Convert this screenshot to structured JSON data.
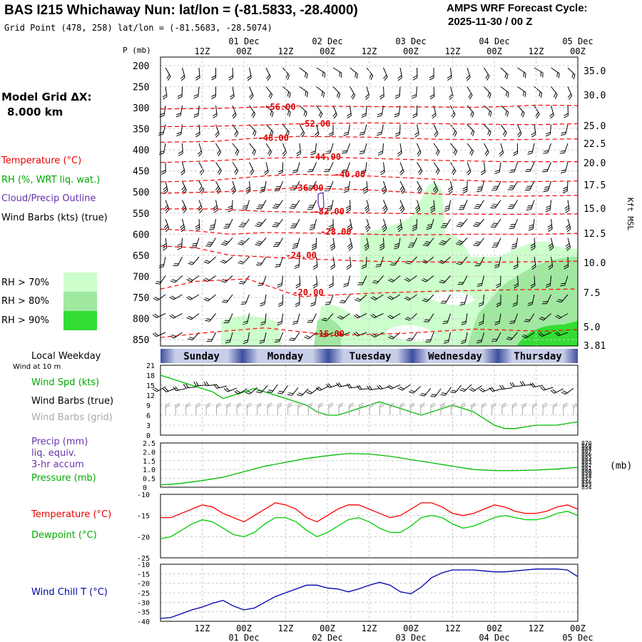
{
  "header": {
    "title": "BAS I215 Whichaway Nun:  lat/lon = (-81.5833, -28.4000)",
    "grid_point": "Grid Point (478, 258) lat/lon = (-81.5683, -28.5074)",
    "cycle_line1": "AMPS WRF Forecast Cycle:",
    "cycle_line2": "2025-11-30 / 00  Z"
  },
  "sidebar": {
    "model_grid_label": "Model Grid ΔX:",
    "model_grid_value": "8.000 km",
    "temperature_label": "Temperature (°C)",
    "rh_label": "RH (%, WRT liq. wat.)",
    "cloud_label": "Cloud/Precip Outline",
    "wind_label": "Wind Barbs (kts) (true)",
    "rh70": "RH > 70%",
    "rh80": "RH > 80%",
    "rh90": "RH > 90%",
    "local_weekday": "Local Weekday",
    "wind_10m": "Wind at 10 m",
    "wind_spd": "Wind Spd (kts)",
    "wind_barbs_true": "Wind Barbs (true)",
    "wind_barbs_grid": "Wind Barbs (grid)",
    "precip": "Precip (mm)",
    "liq_equiv": "liq. equiv.",
    "accum": "3-hr accum",
    "pressure": "Pressure (mb)",
    "temp2": "Temperature (°C)",
    "dewpoint": "Dewpoint (°C)",
    "windchill": "Wind Chill T (°C)"
  },
  "colors": {
    "temperature": "#ff0000",
    "rh70": "#ccffcc",
    "rh80": "#a0e8a0",
    "rh90": "#33dd33",
    "cloud": "#6633aa",
    "wind_spd": "#00bb00",
    "wind_barbs_grid": "#aaaaaa",
    "dewpoint": "#00cc00",
    "windchill": "#0000aa",
    "pressure": "#00bb00"
  },
  "time_axis": {
    "tick_labels": [
      "12Z",
      "00Z",
      "12Z",
      "00Z",
      "12Z",
      "00Z",
      "12Z",
      "00Z",
      "12Z",
      "00Z"
    ],
    "date_labels": [
      "01 Dec",
      "02 Dec",
      "03 Dec",
      "04 Dec",
      "05 Dec"
    ],
    "weekdays": [
      "Sunday",
      "Monday",
      "Tuesday",
      "Wednesday",
      "Thursday"
    ]
  },
  "chart_data": [
    {
      "type": "heatmap",
      "name": "profile",
      "ylabel": "P (mb)",
      "yticks": [
        200,
        250,
        300,
        350,
        400,
        450,
        500,
        550,
        600,
        650,
        700,
        750,
        800,
        850
      ],
      "right_axis_label": "Kft MSL",
      "right_ticks": [
        "35.0",
        "30.0",
        "25.0",
        "22.5",
        "20.0",
        "17.5",
        "15.0",
        "12.5",
        "10.0",
        "7.5",
        "5.0",
        "3.81"
      ],
      "temperature_contours": [
        {
          "value": "-56.00",
          "points": [
            [
              0,
              303
            ],
            [
              15,
              302
            ],
            [
              30,
              298
            ],
            [
              40,
              296
            ],
            [
              55,
              297
            ],
            [
              72,
              298
            ],
            [
              90,
              299
            ],
            [
              100,
              297
            ],
            [
              108,
              294
            ],
            [
              120,
              295
            ]
          ]
        },
        {
          "value": "-52.00",
          "points": [
            [
              0,
              345
            ],
            [
              15,
              344
            ],
            [
              30,
              341
            ],
            [
              40,
              338
            ],
            [
              60,
              336
            ],
            [
              80,
              338
            ],
            [
              100,
              340
            ],
            [
              110,
              340
            ],
            [
              120,
              338
            ]
          ]
        },
        {
          "value": "-48.00",
          "points": [
            [
              0,
              382
            ],
            [
              15,
              380
            ],
            [
              28,
              372
            ],
            [
              40,
              368
            ],
            [
              60,
              370
            ],
            [
              80,
              375
            ],
            [
              100,
              376
            ],
            [
              120,
              374
            ]
          ]
        },
        {
          "value": "-44.00",
          "points": [
            [
              0,
              430
            ],
            [
              15,
              426
            ],
            [
              30,
              420
            ],
            [
              45,
              417
            ],
            [
              60,
              420
            ],
            [
              80,
              425
            ],
            [
              100,
              428
            ],
            [
              120,
              428
            ]
          ]
        },
        {
          "value": "-40.00",
          "points": [
            [
              0,
              476
            ],
            [
              15,
              472
            ],
            [
              30,
              462
            ],
            [
              40,
              458
            ],
            [
              60,
              462
            ],
            [
              80,
              470
            ],
            [
              100,
              476
            ],
            [
              120,
              474
            ]
          ]
        },
        {
          "value": "-36.00",
          "points": [
            [
              0,
              503
            ],
            [
              15,
              500
            ],
            [
              30,
              496
            ],
            [
              38,
              490
            ],
            [
              60,
              495
            ],
            [
              80,
              505
            ],
            [
              100,
              510
            ],
            [
              120,
              508
            ]
          ]
        },
        {
          "value": "-32.00",
          "points": [
            [
              0,
              540
            ],
            [
              15,
              540
            ],
            [
              30,
              546
            ],
            [
              45,
              548
            ],
            [
              60,
              550
            ],
            [
              80,
              552
            ],
            [
              100,
              553
            ],
            [
              120,
              552
            ]
          ]
        },
        {
          "value": "-28.00",
          "points": [
            [
              0,
              588
            ],
            [
              10,
              592
            ],
            [
              20,
              600
            ],
            [
              30,
              596
            ],
            [
              50,
              598
            ],
            [
              70,
              602
            ],
            [
              90,
              600
            ],
            [
              110,
              600
            ],
            [
              120,
              598
            ]
          ]
        },
        {
          "value": "-24.00",
          "points": [
            [
              0,
              628
            ],
            [
              10,
              632
            ],
            [
              20,
              650
            ],
            [
              40,
              658
            ],
            [
              60,
              664
            ],
            [
              80,
              666
            ],
            [
              100,
              666
            ],
            [
              120,
              664
            ]
          ]
        },
        {
          "value": "-20.00",
          "points": [
            [
              0,
              730
            ],
            [
              10,
              712
            ],
            [
              25,
              706
            ],
            [
              40,
              748
            ],
            [
              60,
              740
            ],
            [
              80,
              735
            ],
            [
              100,
              732
            ],
            [
              120,
              730
            ]
          ]
        },
        {
          "value": "-16.00",
          "points": [
            [
              0,
              845
            ],
            [
              15,
              832
            ],
            [
              30,
              822
            ],
            [
              50,
              840
            ],
            [
              70,
              835
            ],
            [
              90,
              825
            ],
            [
              110,
              830
            ],
            [
              120,
              826
            ]
          ]
        }
      ],
      "contour_label_positions": [
        [
          30,
          298
        ],
        [
          40,
          338
        ],
        [
          28,
          372
        ],
        [
          43,
          417
        ],
        [
          50,
          458
        ],
        [
          38,
          490
        ],
        [
          44,
          546
        ],
        [
          46,
          594
        ],
        [
          36,
          650
        ],
        [
          38,
          738
        ],
        [
          44,
          836
        ]
      ]
    },
    {
      "type": "line",
      "name": "wind_speed",
      "x_hours": [
        0,
        3,
        6,
        9,
        12,
        15,
        18,
        21,
        24,
        27,
        30,
        33,
        36,
        39,
        42,
        45,
        48,
        51,
        54,
        57,
        60,
        63,
        66,
        69,
        72,
        75,
        78,
        81,
        84,
        87,
        90,
        93,
        96,
        99,
        102,
        105,
        108,
        111,
        114,
        117,
        120
      ],
      "values": [
        18,
        17,
        16,
        15,
        14,
        13,
        11,
        12,
        13,
        14,
        13,
        12,
        11,
        10,
        9,
        7,
        6,
        6,
        7,
        8,
        9,
        10,
        9,
        8,
        7,
        6,
        7,
        8,
        9,
        8,
        7,
        5,
        3,
        2,
        2,
        2.5,
        3,
        3,
        3,
        3.5,
        4
      ],
      "ylim": [
        0,
        21
      ],
      "yticks": [
        0,
        3,
        6,
        9,
        12,
        15,
        18,
        21
      ]
    },
    {
      "type": "line",
      "name": "pressure",
      "x_hours": [
        0,
        6,
        12,
        18,
        24,
        30,
        36,
        42,
        48,
        54,
        60,
        66,
        72,
        78,
        84,
        90,
        96,
        102,
        108,
        114,
        120
      ],
      "values": [
        854.8,
        855.4,
        856.4,
        857.6,
        859.6,
        861.6,
        863.0,
        864.4,
        865.4,
        866.2,
        866.0,
        865.2,
        864.0,
        862.8,
        861.6,
        860.4,
        860.0,
        860.0,
        860.2,
        860.6,
        861.2
      ],
      "ylim": [
        854,
        870
      ],
      "yticks": [
        854,
        855,
        856,
        857,
        858,
        859,
        860,
        861,
        862,
        863,
        864,
        865,
        866,
        867,
        868,
        869,
        870
      ],
      "precip_yticks": [
        "0",
        "0.5",
        "1.0",
        "1.5",
        "2.0",
        "2.5"
      ],
      "ylabel_right": "(mb)"
    },
    {
      "type": "line",
      "name": "temperature",
      "x_hours": [
        0,
        3,
        6,
        9,
        12,
        15,
        18,
        21,
        24,
        27,
        30,
        33,
        36,
        39,
        42,
        45,
        48,
        51,
        54,
        57,
        60,
        63,
        66,
        69,
        72,
        75,
        78,
        81,
        84,
        87,
        90,
        93,
        96,
        99,
        102,
        105,
        108,
        111,
        114,
        117,
        120
      ],
      "series": [
        {
          "name": "Temperature",
          "values": [
            -15.5,
            -15.5,
            -14.5,
            -13.5,
            -12.5,
            -13,
            -14.5,
            -15.5,
            -16.5,
            -15,
            -13.5,
            -12,
            -12.5,
            -13.5,
            -15.5,
            -16.5,
            -15,
            -13.5,
            -12.5,
            -12.5,
            -13.5,
            -14.5,
            -15.5,
            -15,
            -13.5,
            -12,
            -12,
            -13,
            -14.5,
            -15,
            -14.5,
            -13.5,
            -12.5,
            -13,
            -14,
            -14.5,
            -14.5,
            -14,
            -13,
            -12.5,
            -13.5
          ]
        },
        {
          "name": "Dewpoint",
          "values": [
            -20.5,
            -20,
            -18.5,
            -17,
            -16,
            -16.5,
            -18,
            -19.5,
            -20,
            -19,
            -17,
            -15.5,
            -15.5,
            -16.5,
            -18.5,
            -20,
            -19,
            -17.5,
            -16,
            -15.5,
            -16.5,
            -18,
            -19,
            -19,
            -17.5,
            -15.5,
            -15,
            -15.5,
            -17,
            -18,
            -17.5,
            -16.5,
            -15.5,
            -15,
            -15.5,
            -16,
            -16,
            -15.5,
            -14.5,
            -14,
            -15
          ]
        }
      ],
      "ylim": [
        -25,
        -10
      ],
      "yticks": [
        -10,
        -15,
        -20,
        -25
      ]
    },
    {
      "type": "line",
      "name": "wind_chill",
      "x_hours": [
        0,
        3,
        6,
        9,
        12,
        15,
        18,
        21,
        24,
        27,
        30,
        33,
        36,
        39,
        42,
        45,
        48,
        51,
        54,
        57,
        60,
        63,
        66,
        69,
        72,
        75,
        78,
        81,
        84,
        87,
        90,
        93,
        96,
        99,
        102,
        105,
        108,
        111,
        114,
        117,
        120
      ],
      "values": [
        -38.5,
        -38,
        -36,
        -34,
        -32.5,
        -30.5,
        -29,
        -32,
        -34,
        -33,
        -30,
        -27,
        -25,
        -23,
        -21,
        -21,
        -22.5,
        -23,
        -24.5,
        -23,
        -21,
        -19.5,
        -21,
        -24.5,
        -25.5,
        -22,
        -17,
        -14.5,
        -13,
        -13,
        -13,
        -13.5,
        -14,
        -14,
        -13.5,
        -13,
        -12.5,
        -12.5,
        -12.5,
        -13,
        -16.5
      ],
      "ylim": [
        -40,
        -10
      ],
      "yticks": [
        -10,
        -15,
        -20,
        -25,
        -30,
        -35,
        -40
      ]
    }
  ]
}
